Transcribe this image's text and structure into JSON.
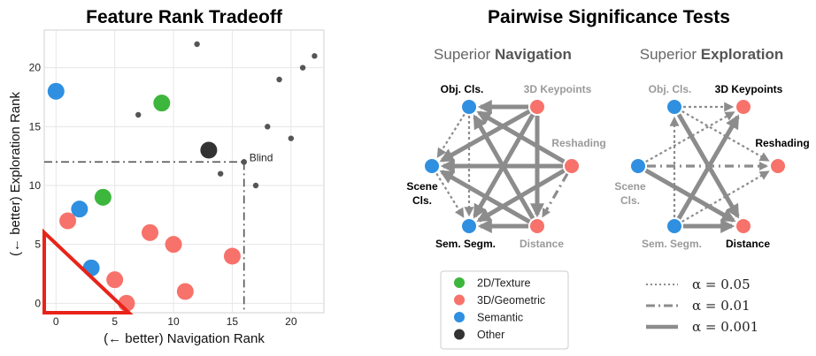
{
  "chart_data": [
    {
      "type": "scatter",
      "title": "Feature Rank Tradeoff",
      "xlabel": "(← better) Navigation Rank",
      "ylabel": "(← better) Exploration Rank",
      "xlim": [
        -1,
        22.8
      ],
      "ylim": [
        -0.8,
        23.2
      ],
      "xticks": [
        "0",
        "5",
        "10",
        "15",
        "20"
      ],
      "yticks": [
        "0",
        "5",
        "10",
        "15",
        "20"
      ],
      "grid": true,
      "legend": {
        "placement": "bottom-center",
        "entries": [
          {
            "name": "2D/Texture",
            "color": "#3cb63c"
          },
          {
            "name": "3D/Geometric",
            "color": "#f7726b"
          },
          {
            "name": "Semantic",
            "color": "#2f8fe0"
          },
          {
            "name": "Other",
            "color": "#333333"
          }
        ]
      },
      "points": [
        {
          "x": 0,
          "y": 18,
          "group": "Semantic"
        },
        {
          "x": 9,
          "y": 17,
          "group": "2D/Texture"
        },
        {
          "x": 4,
          "y": 9,
          "group": "2D/Texture"
        },
        {
          "x": 2,
          "y": 8,
          "group": "Semantic"
        },
        {
          "x": 1,
          "y": 7,
          "group": "3D/Geometric"
        },
        {
          "x": 3,
          "y": 3,
          "group": "Semantic"
        },
        {
          "x": 5,
          "y": 2,
          "group": "3D/Geometric"
        },
        {
          "x": 6,
          "y": 0,
          "group": "3D/Geometric"
        },
        {
          "x": 8,
          "y": 6,
          "group": "3D/Geometric"
        },
        {
          "x": 10,
          "y": 5,
          "group": "3D/Geometric"
        },
        {
          "x": 11,
          "y": 1,
          "group": "3D/Geometric"
        },
        {
          "x": 15,
          "y": 4,
          "group": "3D/Geometric"
        },
        {
          "x": 13,
          "y": 13,
          "group": "Other"
        }
      ],
      "small_points": [
        {
          "x": 12,
          "y": 22
        },
        {
          "x": 7,
          "y": 16
        },
        {
          "x": 16,
          "y": 12
        },
        {
          "x": 14,
          "y": 11
        },
        {
          "x": 17,
          "y": 10
        },
        {
          "x": 18,
          "y": 15
        },
        {
          "x": 19,
          "y": 19
        },
        {
          "x": 20,
          "y": 14
        },
        {
          "x": 21,
          "y": 20
        },
        {
          "x": 22,
          "y": 21
        }
      ],
      "blind": {
        "label": "Blind",
        "x": 16,
        "y": 12
      },
      "triangle": {
        "vertices": [
          [
            -1,
            -0.8
          ],
          [
            -1,
            6
          ],
          [
            6.2,
            -0.8
          ]
        ],
        "color": "#e8241a"
      }
    },
    {
      "type": "diagram",
      "title": "Pairwise Significance Tests",
      "panels": [
        {
          "prefix": "Superior ",
          "emph": "Navigation"
        },
        {
          "prefix": "Superior ",
          "emph": "Exploration"
        }
      ],
      "nodes": {
        "obj": {
          "label": "Obj. Cls.",
          "color": "#2f8fe0"
        },
        "kp": {
          "label": "3D Keypoints",
          "color": "#f7726b"
        },
        "resh": {
          "label": "Reshading",
          "color": "#f7726b"
        },
        "dist": {
          "label": "Distance",
          "color": "#f7726b"
        },
        "seg": {
          "label": "Sem. Segm.",
          "color": "#2f8fe0"
        },
        "scene": {
          "label": "Scene Cls.",
          "color": "#2f8fe0"
        }
      },
      "nav_edges": [
        {
          "from": "kp",
          "to": "obj",
          "alpha": 0.001
        },
        {
          "from": "kp",
          "to": "scene",
          "alpha": 0.001
        },
        {
          "from": "kp",
          "to": "seg",
          "alpha": 0.001
        },
        {
          "from": "kp",
          "to": "dist",
          "alpha": 0.001
        },
        {
          "from": "resh",
          "to": "obj",
          "alpha": 0.001
        },
        {
          "from": "resh",
          "to": "scene",
          "alpha": 0.001
        },
        {
          "from": "resh",
          "to": "seg",
          "alpha": 0.001
        },
        {
          "from": "dist",
          "to": "obj",
          "alpha": 0.001
        },
        {
          "from": "dist",
          "to": "scene",
          "alpha": 0.001
        },
        {
          "from": "dist",
          "to": "seg",
          "alpha": 0.001
        },
        {
          "from": "resh",
          "to": "dist",
          "alpha": 0.01
        },
        {
          "from": "obj",
          "to": "scene",
          "alpha": 0.05
        },
        {
          "from": "obj",
          "to": "seg",
          "alpha": 0.05
        },
        {
          "from": "scene",
          "to": "seg",
          "alpha": 0.05
        }
      ],
      "exp_edges": [
        {
          "from": "obj",
          "to": "kp",
          "alpha": 0.05
        },
        {
          "from": "obj",
          "to": "resh",
          "alpha": 0.05
        },
        {
          "from": "obj",
          "to": "dist",
          "alpha": 0.001
        },
        {
          "from": "scene",
          "to": "kp",
          "alpha": 0.05
        },
        {
          "from": "scene",
          "to": "resh",
          "alpha": 0.01
        },
        {
          "from": "scene",
          "to": "dist",
          "alpha": 0.001
        },
        {
          "from": "seg",
          "to": "kp",
          "alpha": 0.001
        },
        {
          "from": "seg",
          "to": "resh",
          "alpha": 0.05
        },
        {
          "from": "seg",
          "to": "dist",
          "alpha": 0.001
        },
        {
          "from": "seg",
          "to": "obj",
          "alpha": 0.05
        }
      ],
      "edge_legend": [
        {
          "label": "α = 0.05",
          "style": "dotted"
        },
        {
          "label": "α = 0.01",
          "style": "dashdot"
        },
        {
          "label": "α = 0.001",
          "style": "solid"
        }
      ]
    }
  ]
}
